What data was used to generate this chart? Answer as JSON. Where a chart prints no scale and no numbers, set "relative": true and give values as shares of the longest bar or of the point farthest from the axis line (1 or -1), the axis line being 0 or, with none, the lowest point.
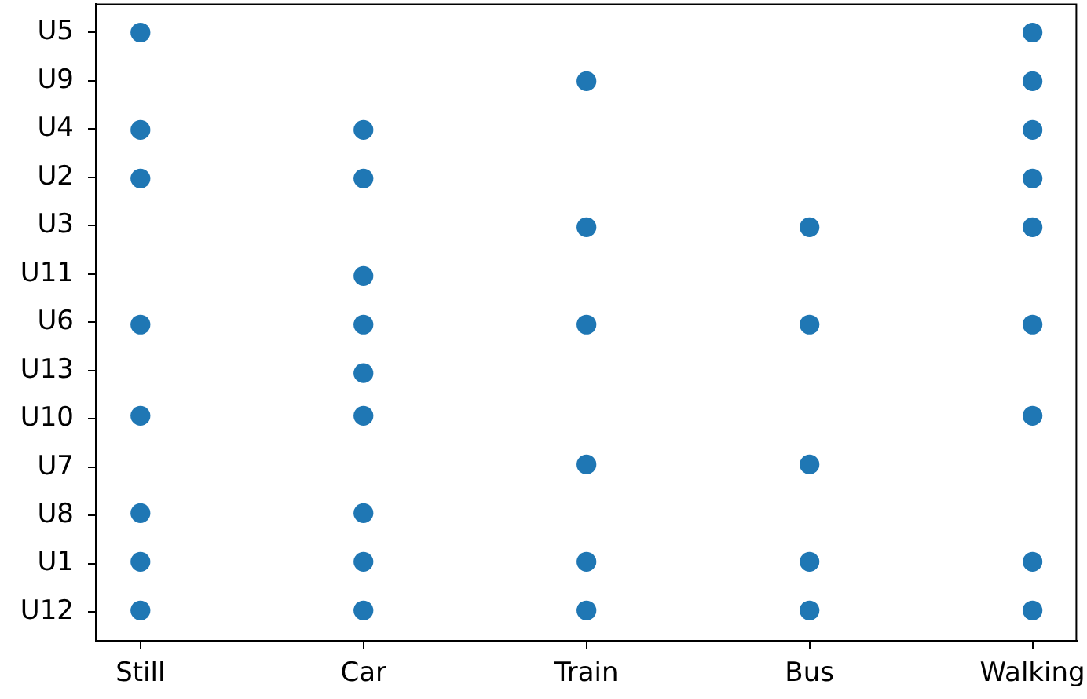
{
  "chart_data": {
    "type": "scatter",
    "categories": [
      "Still",
      "Car",
      "Train",
      "Bus",
      "Walking"
    ],
    "y_categories": [
      "U5",
      "U9",
      "U4",
      "U2",
      "U3",
      "U11",
      "U6",
      "U13",
      "U10",
      "U7",
      "U8",
      "U1",
      "U12"
    ],
    "relative": true,
    "series": [
      {
        "color": "#1f77b4",
        "x": [
          "Still",
          "Still",
          "Still",
          "Still",
          "Still",
          "Still",
          "Still",
          "Still",
          "Car",
          "Car",
          "Car",
          "Car",
          "Car",
          "Car",
          "Car",
          "Car",
          "Car",
          "Train",
          "Train",
          "Train",
          "Train",
          "Train",
          "Train",
          "Bus",
          "Bus",
          "Bus",
          "Bus",
          "Bus",
          "Walking",
          "Walking",
          "Walking",
          "Walking",
          "Walking",
          "Walking",
          "Walking",
          "Walking",
          "Walking"
        ],
        "values": [
          1,
          0.84,
          0.76,
          0.52,
          0.37,
          0.21,
          0.13,
          0.05,
          0.84,
          0.76,
          0.6,
          0.52,
          0.44,
          0.37,
          0.21,
          0.13,
          0.05,
          0.92,
          0.68,
          0.52,
          0.29,
          0.13,
          0.05,
          0.68,
          0.52,
          0.29,
          0.13,
          0.05,
          1,
          0.92,
          0.84,
          0.76,
          0.68,
          0.52,
          0.37,
          0.13,
          0.05
        ]
      }
    ],
    "marker": "circle",
    "grid": false,
    "legend": false
  }
}
